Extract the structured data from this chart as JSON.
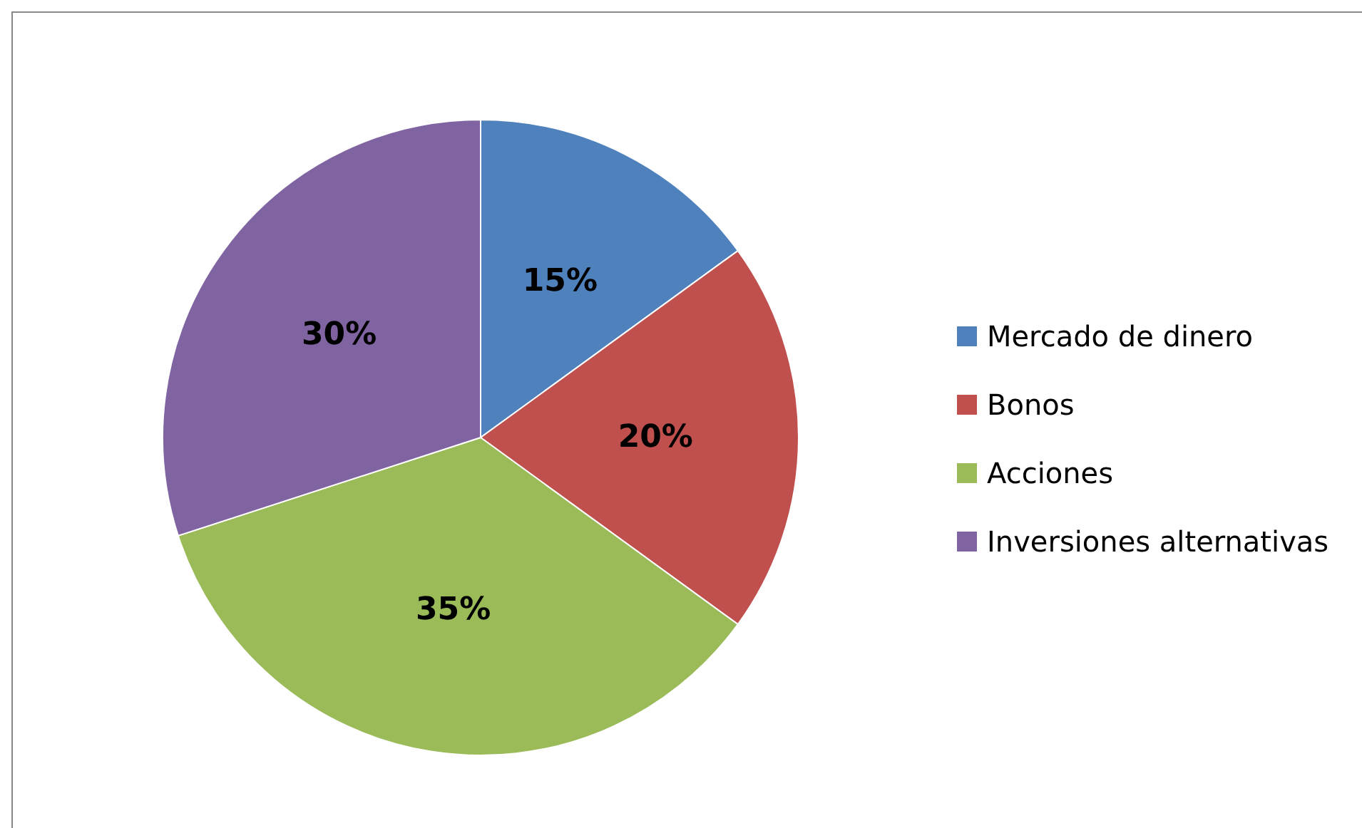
{
  "chart_data": {
    "type": "pie",
    "categories": [
      "Mercado de dinero",
      "Bonos",
      "Acciones",
      "Inversiones alternativas"
    ],
    "values": [
      15,
      20,
      35,
      30
    ],
    "colors": [
      "#4f81bd",
      "#c0504d",
      "#9bbb59",
      "#8064a2"
    ],
    "value_labels": [
      "15%",
      "20%",
      "35%",
      "30%"
    ],
    "legend": "right"
  }
}
